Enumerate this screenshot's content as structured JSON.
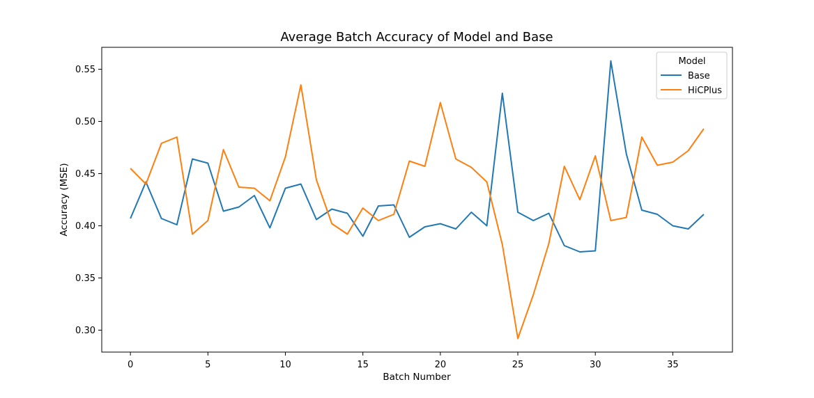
{
  "chart_data": {
    "type": "line",
    "title": "Average Batch Accuracy of Model and Base",
    "xlabel": "Batch Number",
    "ylabel": "Accuracy (MSE)",
    "xlim": [
      -1.85,
      38.85
    ],
    "ylim": [
      0.279,
      0.571
    ],
    "xticks": [
      0,
      5,
      10,
      15,
      20,
      25,
      30,
      35
    ],
    "yticks": [
      0.3,
      0.35,
      0.4,
      0.45,
      0.5,
      0.55
    ],
    "xtick_labels": [
      "0",
      "5",
      "10",
      "15",
      "20",
      "25",
      "30",
      "35"
    ],
    "ytick_labels": [
      "0.30",
      "0.35",
      "0.40",
      "0.45",
      "0.50",
      "0.55"
    ],
    "grid": false,
    "legend": {
      "title": "Model",
      "placement": "top-right"
    },
    "x": [
      0,
      1,
      2,
      3,
      4,
      5,
      6,
      7,
      8,
      9,
      10,
      11,
      12,
      13,
      14,
      15,
      16,
      17,
      18,
      19,
      20,
      21,
      22,
      23,
      24,
      25,
      26,
      27,
      28,
      29,
      30,
      31,
      32,
      33,
      34,
      35,
      36,
      37
    ],
    "series": [
      {
        "name": "Base",
        "color": "#1f77b4",
        "values": [
          0.407,
          0.442,
          0.407,
          0.401,
          0.464,
          0.46,
          0.414,
          0.418,
          0.429,
          0.398,
          0.436,
          0.44,
          0.406,
          0.416,
          0.412,
          0.39,
          0.419,
          0.42,
          0.389,
          0.399,
          0.402,
          0.397,
          0.413,
          0.4,
          0.527,
          0.413,
          0.405,
          0.412,
          0.381,
          0.375,
          0.376,
          0.558,
          0.469,
          0.415,
          0.411,
          0.4,
          0.397,
          0.411
        ]
      },
      {
        "name": "HiCPlus",
        "color": "#ff7f0e",
        "values": [
          0.455,
          0.44,
          0.479,
          0.485,
          0.392,
          0.405,
          0.473,
          0.437,
          0.436,
          0.424,
          0.466,
          0.535,
          0.444,
          0.402,
          0.392,
          0.417,
          0.405,
          0.411,
          0.462,
          0.457,
          0.518,
          0.464,
          0.456,
          0.442,
          0.382,
          0.292,
          0.334,
          0.383,
          0.457,
          0.425,
          0.467,
          0.405,
          0.408,
          0.485,
          0.458,
          0.461,
          0.472,
          0.493
        ]
      }
    ]
  }
}
